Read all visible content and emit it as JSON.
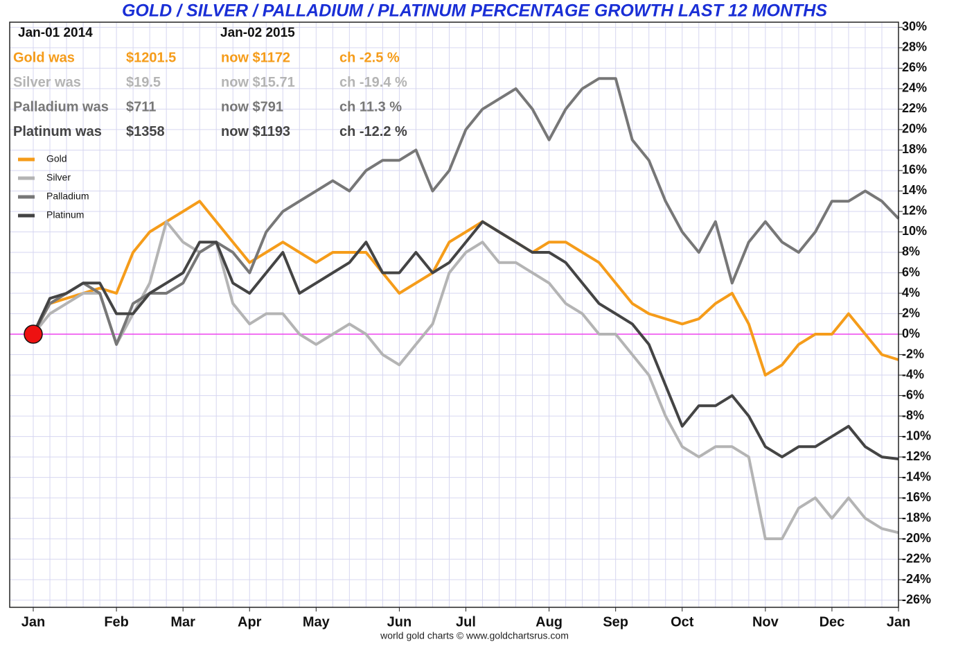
{
  "chart_data": {
    "type": "line",
    "title": "GOLD / SILVER / PALLADIUM / PLATINUM PERCENTAGE GROWTH LAST 12 MONTHS",
    "header": {
      "start": "Jan-01  2014",
      "end": "Jan-02  2015"
    },
    "summary_rows": [
      [
        "Gold was",
        "$1201.5",
        "now $1172",
        "ch -2.5 %"
      ],
      [
        "Silver was",
        "$19.5",
        "now $15.71",
        "ch -19.4 %"
      ],
      [
        "Palladium was",
        "$711",
        "now $791",
        "ch 11.3 %"
      ],
      [
        "Platinum was",
        "$1358",
        "now $1193",
        "ch -12.2 %"
      ]
    ],
    "source": "world gold charts © www.goldchartsrus.com",
    "categories": [
      "Jan",
      null,
      null,
      null,
      null,
      "Feb",
      null,
      null,
      null,
      "Mar",
      null,
      null,
      null,
      "Apr",
      null,
      null,
      null,
      "May",
      null,
      null,
      null,
      null,
      "Jun",
      null,
      null,
      null,
      "Jul",
      null,
      null,
      null,
      null,
      "Aug",
      null,
      null,
      null,
      "Sep",
      null,
      null,
      null,
      "Oct",
      null,
      null,
      null,
      null,
      "Nov",
      null,
      null,
      null,
      "Dec",
      null,
      null,
      null,
      "Jan"
    ],
    "series": [
      {
        "name": "Gold",
        "color": "#f59c1a",
        "values": [
          0,
          3,
          3.5,
          4,
          4.5,
          4,
          8,
          10,
          11,
          12,
          13,
          11,
          9,
          7,
          8,
          9,
          8,
          7,
          8,
          8,
          8,
          6,
          4,
          5,
          6,
          9,
          10,
          11,
          10,
          9,
          8,
          9,
          9,
          8,
          7,
          5,
          3,
          2,
          1.5,
          1,
          1.5,
          3,
          4,
          1,
          -4,
          -3,
          -1,
          0,
          0,
          2,
          0,
          -2,
          -2.5
        ]
      },
      {
        "name": "Silver",
        "color": "#b4b4b4",
        "values": [
          0,
          2,
          3,
          4,
          4,
          -1,
          2,
          5,
          11,
          9,
          8,
          9,
          3,
          1,
          2,
          2,
          0,
          -1,
          0,
          1,
          0,
          -2,
          -3,
          -1,
          1,
          6,
          8,
          9,
          7,
          7,
          6,
          5,
          3,
          2,
          0,
          0,
          -2,
          -4,
          -8,
          -11,
          -12,
          -11,
          -11,
          -12,
          -20,
          -20,
          -17,
          -16,
          -18,
          -16,
          -18,
          -19,
          -19.4
        ]
      },
      {
        "name": "Palladium",
        "color": "#777777",
        "values": [
          0,
          3,
          4,
          5,
          4,
          -1,
          3,
          4,
          4,
          5,
          8,
          9,
          8,
          6,
          10,
          12,
          13,
          14,
          15,
          14,
          16,
          17,
          17,
          18,
          14,
          16,
          20,
          22,
          23,
          24,
          22,
          19,
          22,
          24,
          25,
          25,
          19,
          17,
          13,
          10,
          8,
          11,
          5,
          9,
          11,
          9,
          8,
          10,
          13,
          13,
          14,
          13,
          11.3
        ]
      },
      {
        "name": "Platinum",
        "color": "#444444",
        "values": [
          0,
          3.5,
          4,
          5,
          5,
          2,
          2,
          4,
          5,
          6,
          9,
          9,
          5,
          4,
          6,
          8,
          4,
          5,
          6,
          7,
          9,
          6,
          6,
          8,
          6,
          7,
          9,
          11,
          10,
          9,
          8,
          8,
          7,
          5,
          3,
          2,
          1,
          -1,
          -5,
          -9,
          -7,
          -7,
          -6,
          -8,
          -11,
          -12,
          -11,
          -11,
          -10,
          -9,
          -11,
          -12,
          -12.2
        ]
      }
    ],
    "ylim": [
      -26.7,
      30.5
    ],
    "yticks": [
      {
        "value": 30,
        "label": "30%"
      },
      {
        "value": 28,
        "label": "28%"
      },
      {
        "value": 26,
        "label": "26%"
      },
      {
        "value": 24,
        "label": "24%"
      },
      {
        "value": 22,
        "label": "22%"
      },
      {
        "value": 20,
        "label": "20%"
      },
      {
        "value": 18,
        "label": "18%"
      },
      {
        "value": 16,
        "label": "16%"
      },
      {
        "value": 14,
        "label": "14%"
      },
      {
        "value": 12,
        "label": "12%"
      },
      {
        "value": 10,
        "label": "10%"
      },
      {
        "value": 8,
        "label": "8%"
      },
      {
        "value": 6,
        "label": "6%"
      },
      {
        "value": 4,
        "label": "4%"
      },
      {
        "value": 2,
        "label": "2%"
      },
      {
        "value": 0,
        "label": "0%"
      },
      {
        "value": -2,
        "label": "-2%"
      },
      {
        "value": -4,
        "label": "-4%"
      },
      {
        "value": -6,
        "label": "-6%"
      },
      {
        "value": -8,
        "label": "-8%"
      },
      {
        "value": -10,
        "label": "-10%"
      },
      {
        "value": -12,
        "label": "-12%"
      },
      {
        "value": -14,
        "label": "-14%"
      },
      {
        "value": -16,
        "label": "-16%"
      },
      {
        "value": -18,
        "label": "-18%"
      },
      {
        "value": -20,
        "label": "-20%"
      },
      {
        "value": -22,
        "label": "-22%"
      },
      {
        "value": -24,
        "label": "-24%"
      },
      {
        "value": -26,
        "label": "-26%"
      }
    ],
    "grid": true,
    "zero_line_color": "#ee44ee"
  }
}
